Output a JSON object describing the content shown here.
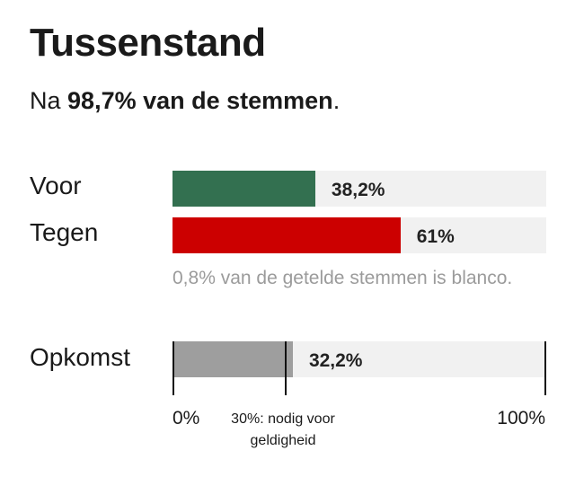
{
  "title": "Tussenstand",
  "subtitle": {
    "prefix": "Na ",
    "bold": "98,7% van de stemmen",
    "suffix": "."
  },
  "colors": {
    "voor": "#337050",
    "tegen": "#cc0000",
    "opkomst": "#9e9e9e",
    "track": "#f1f1f1"
  },
  "rows": [
    {
      "label": "Voor",
      "value": 38.2,
      "value_label": "38,2%"
    },
    {
      "label": "Tegen",
      "value": 61,
      "value_label": "61%"
    }
  ],
  "note": "0,8% van de getelde stemmen is blanco.",
  "turnout": {
    "label": "Opkomst",
    "value": 32.2,
    "value_label": "32,2%",
    "threshold": 30,
    "threshold_label": "30%: nodig voor geldigheid",
    "axis_min_label": "0%",
    "axis_max_label": "100%"
  },
  "chart_data": {
    "type": "bar",
    "title": "Tussenstand",
    "subtitle": "Na 98,7% van de stemmen.",
    "categories": [
      "Voor",
      "Tegen",
      "Opkomst"
    ],
    "values": [
      38.2,
      61,
      32.2
    ],
    "ylim": [
      0,
      100
    ],
    "annotations": [
      "0,8% van de getelde stemmen is blanco.",
      "30%: nodig voor geldigheid"
    ],
    "reference_line": {
      "value": 30,
      "label": "30%: nodig voor geldigheid"
    },
    "grid": false,
    "legend": "none"
  }
}
